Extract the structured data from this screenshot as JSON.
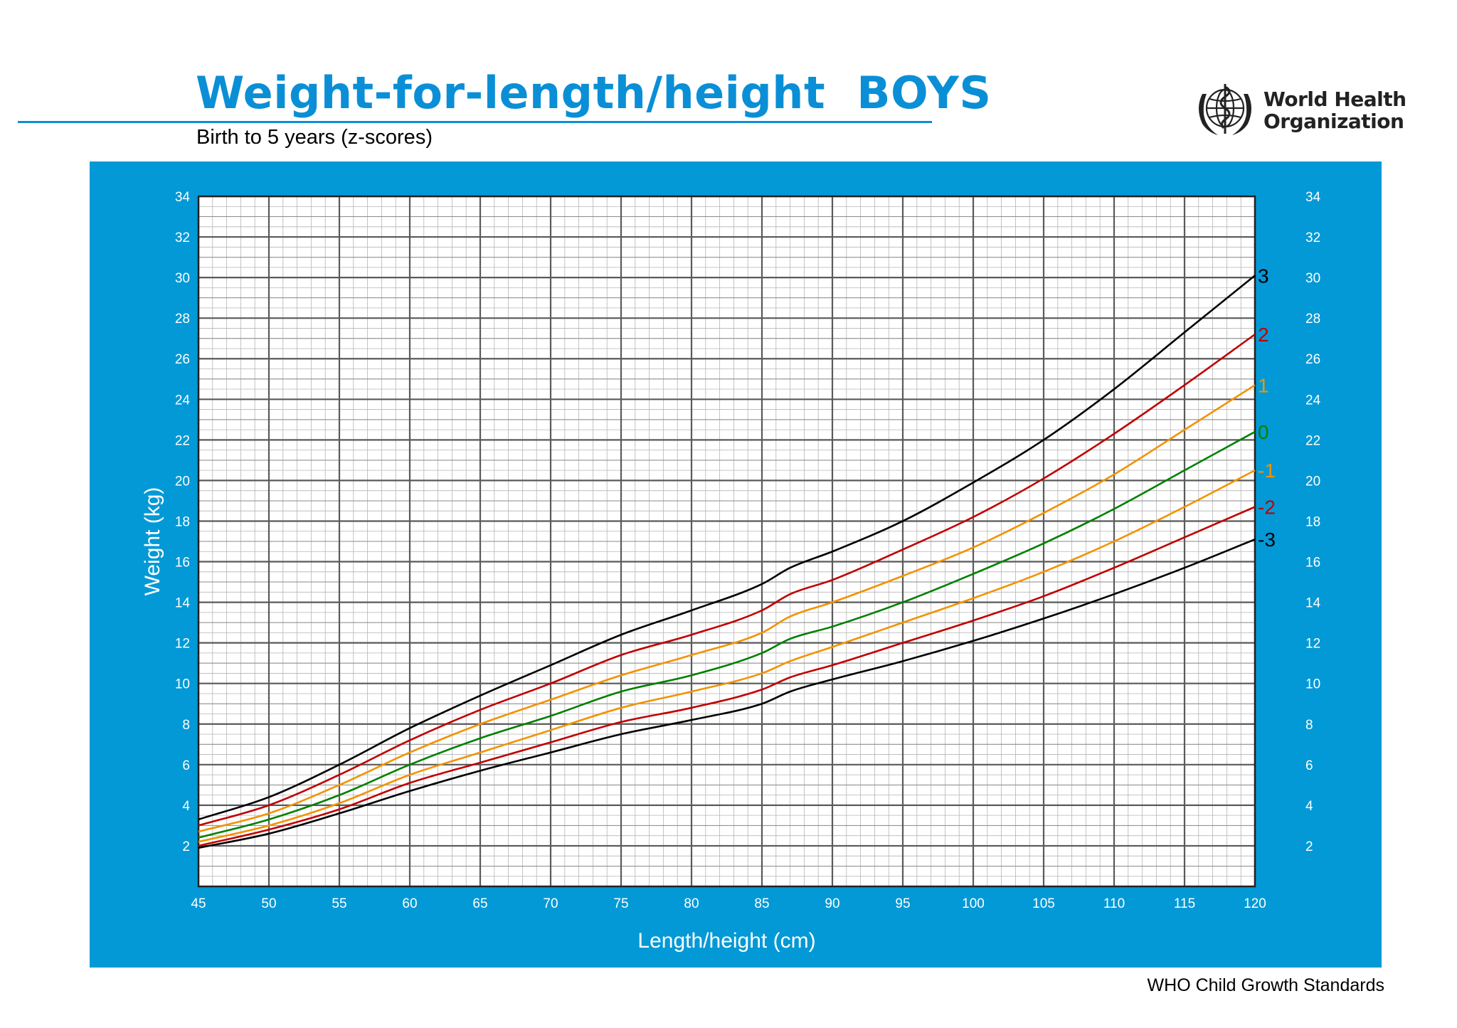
{
  "header": {
    "title": "Weight-for-length/height  BOYS",
    "subtitle": "Birth to 5 years (z-scores)",
    "org_name_line1": "World Health",
    "org_name_line2": "Organization",
    "logo_icon": "who-emblem-icon"
  },
  "footer": {
    "text": "WHO Child Growth Standards"
  },
  "colors": {
    "brand_blue": "#0399d6",
    "title_blue": "#0a8fd6",
    "z3": "#000000",
    "z2": "#c00000",
    "z1": "#f39200",
    "z0": "#008000"
  },
  "chart_data": {
    "type": "line",
    "xlabel": "Length/height (cm)",
    "ylabel": "Weight (kg)",
    "xlim": [
      45,
      120
    ],
    "ylim": [
      0,
      34
    ],
    "x_ticks": [
      45,
      50,
      55,
      60,
      65,
      70,
      75,
      80,
      85,
      90,
      95,
      100,
      105,
      110,
      115,
      120
    ],
    "y_ticks": [
      2,
      4,
      6,
      8,
      10,
      12,
      14,
      16,
      18,
      20,
      22,
      24,
      26,
      28,
      30,
      32,
      34
    ],
    "grid": true,
    "x": [
      45,
      50,
      55,
      60,
      65,
      70,
      75,
      80,
      85,
      87,
      90,
      95,
      100,
      105,
      110,
      115,
      120
    ],
    "series": [
      {
        "name": "3",
        "color": "#000000",
        "values": [
          3.3,
          4.4,
          6.0,
          7.8,
          9.4,
          10.9,
          12.4,
          13.6,
          14.9,
          15.7,
          16.5,
          18.0,
          19.9,
          22.0,
          24.5,
          27.3,
          30.1
        ]
      },
      {
        "name": "2",
        "color": "#c00000",
        "values": [
          3.0,
          4.0,
          5.5,
          7.2,
          8.7,
          10.0,
          11.4,
          12.4,
          13.6,
          14.4,
          15.1,
          16.6,
          18.2,
          20.1,
          22.3,
          24.7,
          27.2
        ]
      },
      {
        "name": "1",
        "color": "#f39200",
        "values": [
          2.7,
          3.6,
          5.0,
          6.6,
          8.0,
          9.2,
          10.4,
          11.4,
          12.5,
          13.3,
          14.0,
          15.3,
          16.7,
          18.4,
          20.3,
          22.5,
          24.7
        ]
      },
      {
        "name": "0",
        "color": "#008000",
        "values": [
          2.4,
          3.3,
          4.5,
          6.0,
          7.3,
          8.4,
          9.6,
          10.4,
          11.5,
          12.2,
          12.8,
          14.0,
          15.4,
          16.9,
          18.6,
          20.5,
          22.4
        ]
      },
      {
        "name": "-1",
        "color": "#f39200",
        "values": [
          2.2,
          3.0,
          4.1,
          5.5,
          6.6,
          7.7,
          8.8,
          9.6,
          10.5,
          11.1,
          11.8,
          13.0,
          14.2,
          15.5,
          17.0,
          18.7,
          20.5
        ]
      },
      {
        "name": "-2",
        "color": "#c00000",
        "values": [
          2.0,
          2.8,
          3.8,
          5.1,
          6.1,
          7.1,
          8.1,
          8.8,
          9.7,
          10.3,
          10.9,
          12.0,
          13.1,
          14.3,
          15.7,
          17.2,
          18.7
        ]
      },
      {
        "name": "-3",
        "color": "#000000",
        "values": [
          1.9,
          2.6,
          3.6,
          4.7,
          5.7,
          6.6,
          7.5,
          8.2,
          9.0,
          9.6,
          10.2,
          11.1,
          12.1,
          13.2,
          14.4,
          15.7,
          17.1
        ]
      }
    ]
  }
}
